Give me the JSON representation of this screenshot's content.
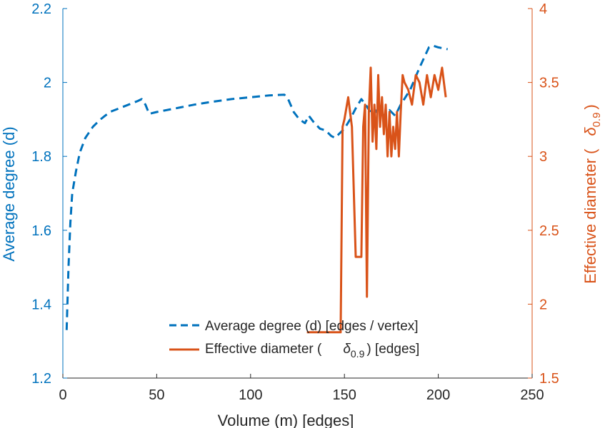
{
  "chart_data": {
    "type": "line",
    "xlabel": "Volume (m) [edges]",
    "ylabel_left": "Average degree (d)",
    "ylabel_right": "Effective diameter (",
    "ylabel_right_symbol": "δ",
    "ylabel_right_subscript": "0.9",
    "ylabel_right_suffix": ")",
    "xlim": [
      0,
      250
    ],
    "ylim_left": [
      1.2,
      2.2
    ],
    "ylim_right": [
      1.5,
      4
    ],
    "xticks": [
      0,
      50,
      100,
      150,
      200,
      250
    ],
    "xtick_labels": [
      "0",
      "50",
      "100",
      "150",
      "200",
      "250"
    ],
    "yticks_left": [
      1.2,
      1.4,
      1.6,
      1.8,
      2,
      2.2
    ],
    "ytick_labels_left": [
      "1.2",
      "1.4",
      "1.6",
      "1.8",
      "2",
      "2.2"
    ],
    "yticks_right": [
      1.5,
      2,
      2.5,
      3,
      3.5,
      4
    ],
    "ytick_labels_right": [
      "1.5",
      "2",
      "2.5",
      "3",
      "3.5",
      "4"
    ],
    "colors": {
      "left": "#0072BD",
      "right": "#D95319",
      "axis_text": "#262626"
    },
    "legend": {
      "position": "bottom-center",
      "entries": [
        {
          "label": "Average degree (d) [edges / vertex]",
          "style": "dashed",
          "color": "#0072BD"
        },
        {
          "label_prefix": "Effective diameter (",
          "symbol": "δ",
          "subscript": "0.9",
          "label_suffix": ") [edges]",
          "style": "solid",
          "color": "#D95319"
        }
      ]
    },
    "series": [
      {
        "name": "Average degree (d) [edges / vertex]",
        "axis": "left",
        "style": "dashed",
        "x": [
          2,
          3,
          4,
          5,
          7,
          9,
          12,
          16,
          20,
          25,
          30,
          35,
          40,
          42,
          44,
          46,
          50,
          60,
          70,
          80,
          90,
          100,
          110,
          118,
          120,
          123,
          126,
          129,
          131,
          134,
          137,
          140,
          143,
          145,
          147,
          150,
          153,
          156,
          159,
          162,
          165,
          168,
          171,
          174,
          177,
          180,
          185,
          190,
          195,
          197,
          200,
          205
        ],
        "y": [
          1.33,
          1.5,
          1.62,
          1.7,
          1.76,
          1.81,
          1.85,
          1.88,
          1.9,
          1.92,
          1.93,
          1.94,
          1.95,
          1.955,
          1.94,
          1.915,
          1.92,
          1.93,
          1.94,
          1.948,
          1.955,
          1.96,
          1.965,
          1.967,
          1.955,
          1.92,
          1.9,
          1.89,
          1.91,
          1.89,
          1.875,
          1.87,
          1.855,
          1.85,
          1.86,
          1.875,
          1.9,
          1.93,
          1.955,
          1.935,
          1.91,
          1.93,
          1.91,
          1.925,
          1.91,
          1.94,
          1.98,
          2.04,
          2.095,
          2.1,
          2.095,
          2.09
        ]
      },
      {
        "name": "Effective diameter (δ0.9) [edges]",
        "axis": "right",
        "style": "solid",
        "x": [
          130,
          134,
          138,
          142,
          146,
          148,
          149,
          150,
          152,
          154,
          156,
          158,
          159,
          160,
          161,
          162,
          163,
          164,
          165,
          166,
          167,
          168,
          169,
          170,
          171,
          172,
          173,
          174,
          175,
          176,
          177,
          178,
          179,
          180,
          181,
          182,
          184,
          186,
          188,
          190,
          192,
          194,
          196,
          198,
          200,
          202,
          204
        ],
        "y": [
          1.81,
          1.81,
          1.81,
          1.81,
          1.81,
          1.81,
          3.2,
          3.25,
          3.4,
          3.2,
          2.32,
          2.32,
          2.32,
          3.2,
          3.35,
          2.05,
          3.3,
          3.6,
          3.1,
          3.35,
          3.05,
          3.55,
          3.2,
          3.4,
          3.15,
          3.35,
          3.0,
          3.3,
          3.0,
          3.2,
          3.05,
          3.3,
          3.0,
          3.3,
          3.55,
          3.5,
          3.45,
          3.35,
          3.55,
          3.5,
          3.35,
          3.55,
          3.4,
          3.55,
          3.45,
          3.6,
          3.4
        ]
      }
    ]
  }
}
